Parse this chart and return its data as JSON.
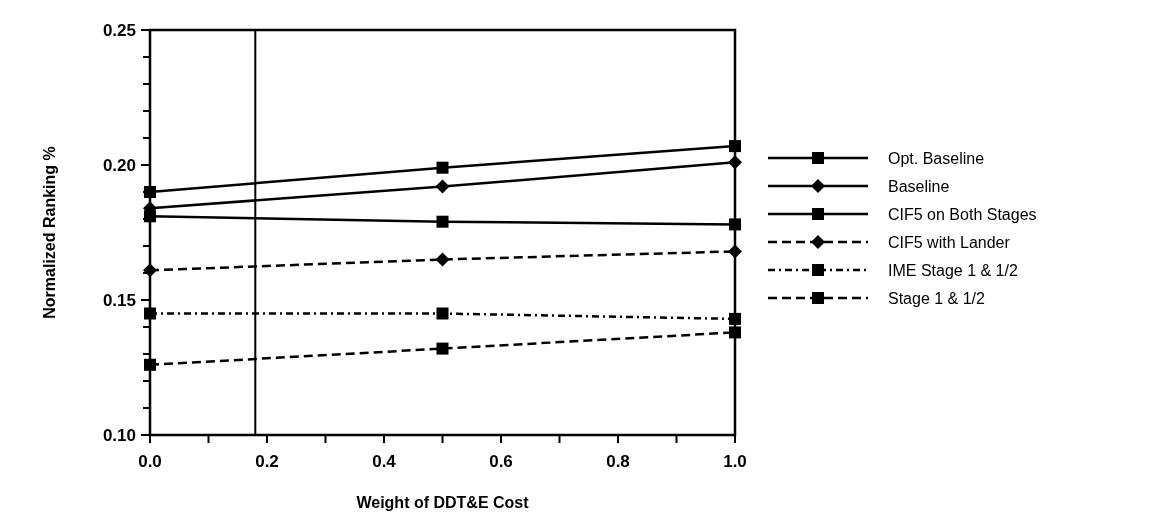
{
  "chart_data": {
    "type": "line",
    "xlabel": "Weight of DDT&E Cost",
    "ylabel": "Normalized Ranking %",
    "x": [
      0,
      0.5,
      1
    ],
    "xlim": [
      0,
      1
    ],
    "ylim": [
      0.1,
      0.25
    ],
    "xticks": [
      {
        "value": 0,
        "label": "0.0"
      },
      {
        "value": 0.1,
        "label": null
      },
      {
        "value": 0.2,
        "label": "0.2"
      },
      {
        "value": 0.3,
        "label": null
      },
      {
        "value": 0.4,
        "label": "0.4"
      },
      {
        "value": 0.5,
        "label": null
      },
      {
        "value": 0.6,
        "label": "0.6"
      },
      {
        "value": 0.7,
        "label": null
      },
      {
        "value": 0.8,
        "label": "0.8"
      },
      {
        "value": 0.9,
        "label": null
      },
      {
        "value": 1,
        "label": "1.0"
      }
    ],
    "yticks": [
      {
        "value": 0.1,
        "label": "0.10"
      },
      {
        "value": 0.11,
        "label": null
      },
      {
        "value": 0.12,
        "label": null
      },
      {
        "value": 0.13,
        "label": null
      },
      {
        "value": 0.14,
        "label": null
      },
      {
        "value": 0.15,
        "label": "0.15"
      },
      {
        "value": 0.16,
        "label": null
      },
      {
        "value": 0.17,
        "label": null
      },
      {
        "value": 0.18,
        "label": null
      },
      {
        "value": 0.19,
        "label": null
      },
      {
        "value": 0.2,
        "label": "0.20"
      },
      {
        "value": 0.21,
        "label": null
      },
      {
        "value": 0.22,
        "label": null
      },
      {
        "value": 0.23,
        "label": null
      },
      {
        "value": 0.24,
        "label": null
      },
      {
        "value": 0.25,
        "label": "0.25"
      }
    ],
    "ref_lines": [
      {
        "axis": "x",
        "value": 0.18,
        "color": "#000000"
      }
    ],
    "legend": "right",
    "grid": false,
    "series": [
      {
        "name": "Opt. Baseline",
        "color": "#000000",
        "marker": "square",
        "line_style": "solid",
        "values": [
          0.19,
          0.199,
          0.207
        ]
      },
      {
        "name": "Baseline",
        "color": "#000000",
        "marker": "diamond",
        "line_style": "solid",
        "values": [
          0.184,
          0.192,
          0.201
        ]
      },
      {
        "name": "CIF5 on Both Stages",
        "color": "#000000",
        "marker": "square",
        "line_style": "solid",
        "values": [
          0.181,
          0.179,
          0.178
        ]
      },
      {
        "name": "CIF5 with Lander",
        "color": "#000000",
        "marker": "diamond",
        "line_style": "dashed",
        "values": [
          0.161,
          0.165,
          0.168
        ]
      },
      {
        "name": "IME Stage 1 & 1/2",
        "color": "#000000",
        "marker": "square",
        "line_style": "dotted",
        "values": [
          0.145,
          0.145,
          0.143
        ]
      },
      {
        "name": "Stage 1 & 1/2",
        "color": "#000000",
        "marker": "square",
        "line_style": "dashed",
        "values": [
          0.126,
          0.132,
          0.138
        ]
      }
    ]
  }
}
